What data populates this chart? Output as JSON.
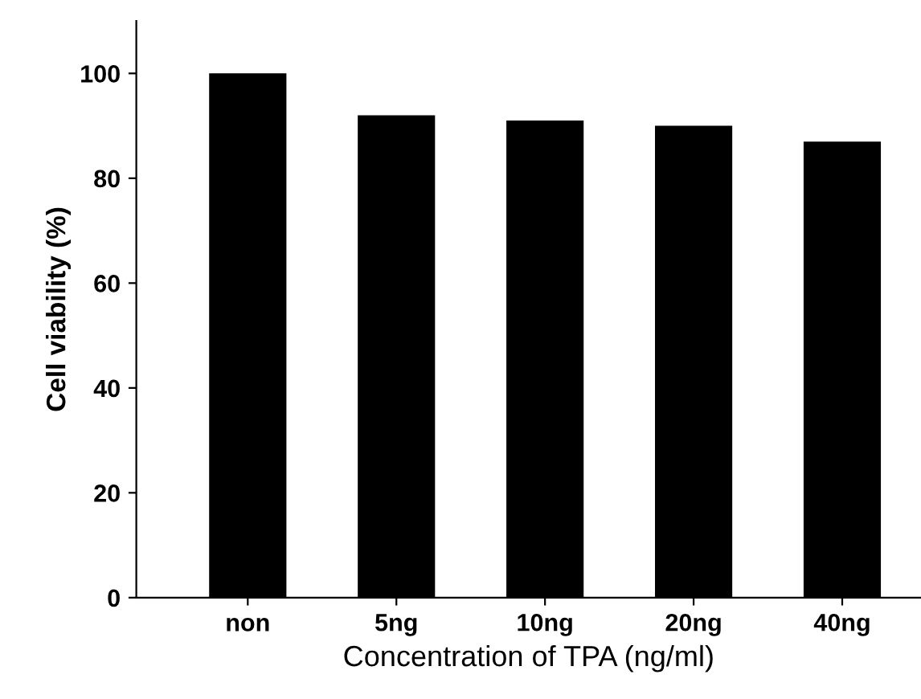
{
  "chart_data": {
    "type": "bar",
    "xlabel": "Concentration of TPA (ng/ml)",
    "ylabel": "Cell viability (%)",
    "categories": [
      "non",
      "5ng",
      "10ng",
      "20ng",
      "40ng"
    ],
    "values": [
      100,
      92,
      91,
      90,
      87
    ],
    "color": "#000000",
    "ylim": [
      0,
      110
    ],
    "yticks": [
      0,
      20,
      40,
      60,
      80,
      100
    ],
    "grid": false
  }
}
